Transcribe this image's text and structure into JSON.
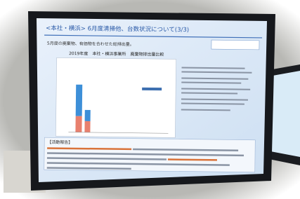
{
  "screen": {
    "title": "<本社・横浜> 6月度清掃他、台数状況について(3/3)",
    "bullet": "5月度の廃棄物、有価物を合わせた総排出量。",
    "chart_title": "2019年度　本社・横浜事業所　廃棄物排出量比較",
    "section": "【活動報告】"
  }
}
